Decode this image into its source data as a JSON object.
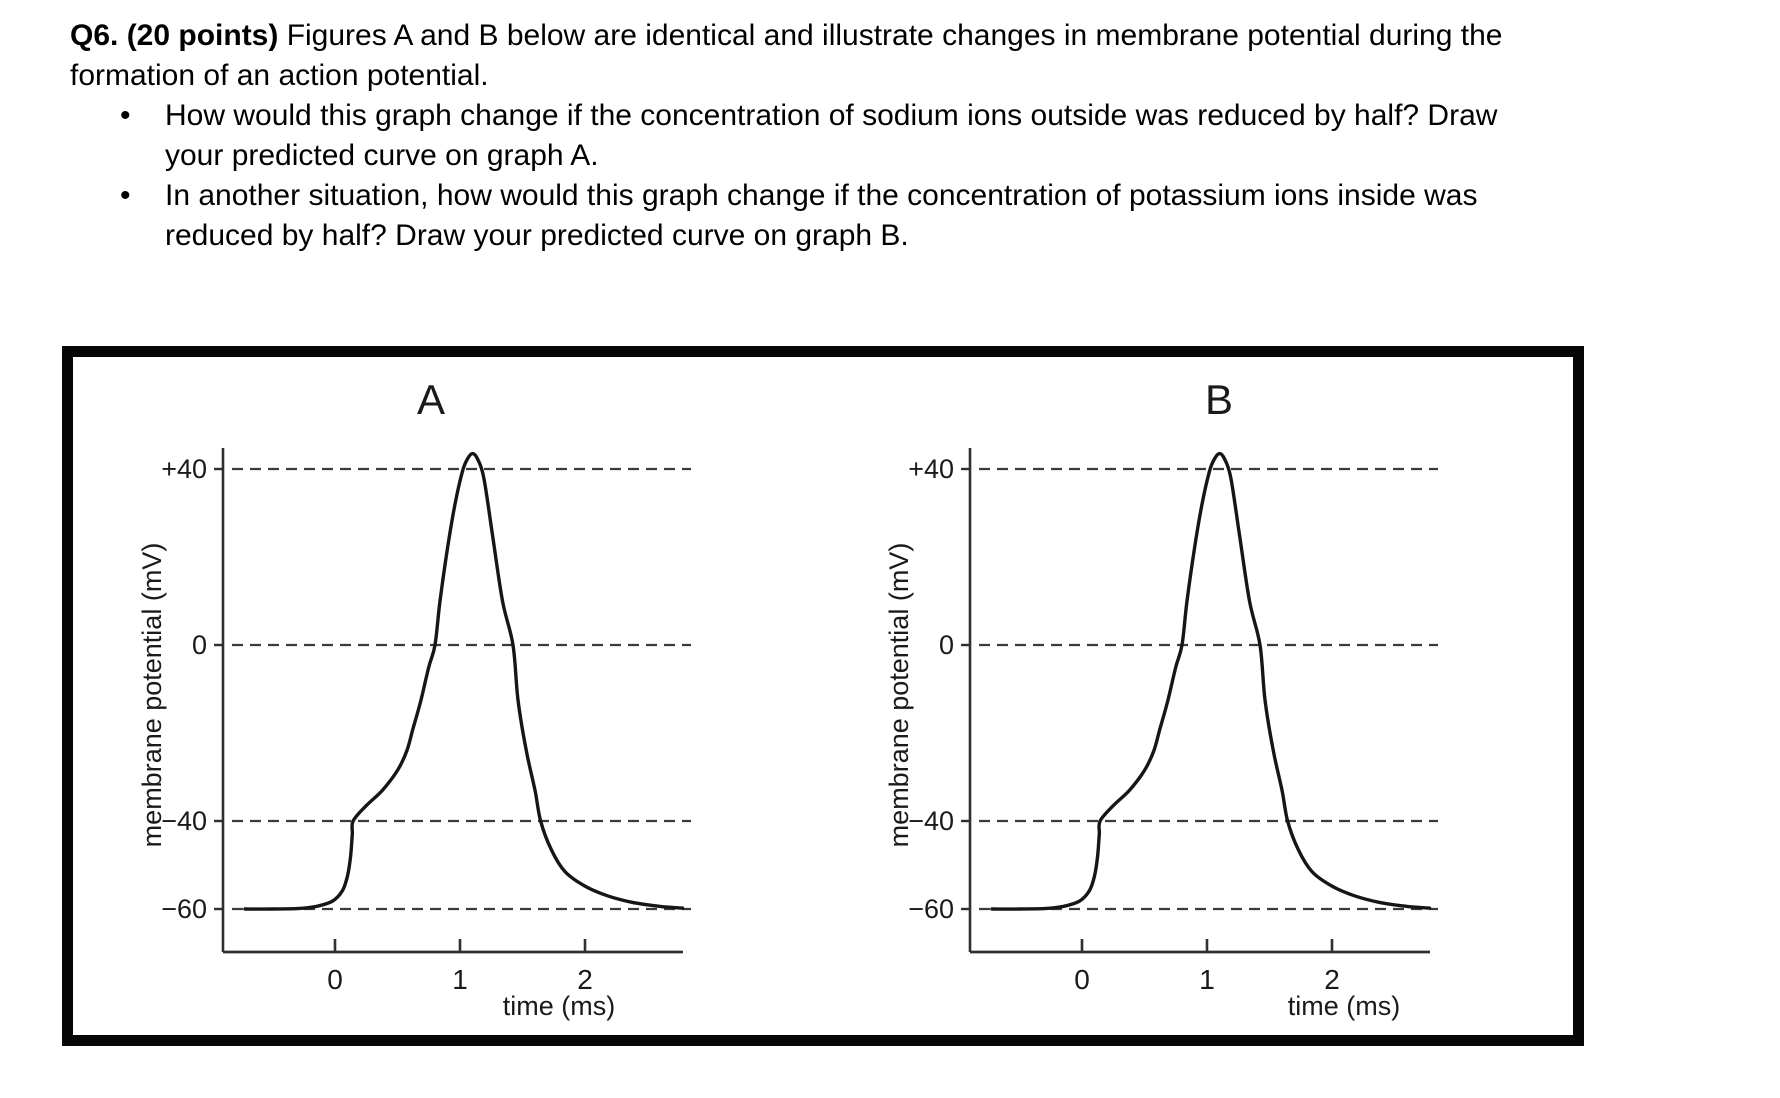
{
  "question": {
    "number_points": "Q6. (20 points)",
    "intro_rest": " Figures A and B below are identical and illustrate changes in membrane potential during the",
    "intro_line2": "formation of an action potential.",
    "bullet_glyph": "•",
    "bullets": [
      {
        "line1": "How would this graph change if the concentration of sodium ions outside was reduced by half? Draw",
        "line2": "your predicted curve on graph A."
      },
      {
        "line1": "In another situation, how would this graph change if the concentration of potassium ions inside was",
        "line2": "reduced by half? Draw your predicted curve on graph B."
      }
    ]
  },
  "figure": {
    "border_color": "#060606",
    "curve_color": "#161616",
    "dash_color": "#3b3b3b",
    "axis_color": "#2f2f2f"
  },
  "chart_data": [
    {
      "type": "line",
      "title": "A",
      "xlabel": "time (ms)",
      "ylabel": "membrane potential (mV)",
      "x_ticks": [
        0,
        1,
        2
      ],
      "y_tick_values": [
        40,
        0,
        -40,
        -60
      ],
      "y_tick_labels": [
        "+40",
        "0",
        "−40",
        "−60"
      ],
      "xlim": [
        -0.9,
        2.78
      ],
      "ylim": [
        -75,
        52
      ],
      "grid": "horizontal dashed lines at +40, 0, -40, -60",
      "legend": "none",
      "resting_potential_mV": -60,
      "threshold_mV": -40,
      "peak_mV": 43.5,
      "peak_time_ms": 1.1,
      "series": [
        {
          "name": "membrane potential",
          "points": [
            [
              -0.72,
              -60
            ],
            [
              -0.5,
              -60
            ],
            [
              -0.3,
              -59.9
            ],
            [
              -0.15,
              -59.4
            ],
            [
              -0.02,
              -58.2
            ],
            [
              0.06,
              -55.8
            ],
            [
              0.1,
              -52.5
            ],
            [
              0.125,
              -48
            ],
            [
              0.138,
              -43
            ],
            [
              0.145,
              -40
            ],
            [
              0.25,
              -36.5
            ],
            [
              0.38,
              -33
            ],
            [
              0.5,
              -28.5
            ],
            [
              0.575,
              -24
            ],
            [
              0.624,
              -19
            ],
            [
              0.688,
              -12.5
            ],
            [
              0.75,
              -5
            ],
            [
              0.8,
              0
            ],
            [
              0.84,
              10
            ],
            [
              0.9,
              22
            ],
            [
              0.96,
              32
            ],
            [
              1.02,
              39.5
            ],
            [
              1.06,
              42.3
            ],
            [
              1.1,
              43.5
            ],
            [
              1.14,
              42.3
            ],
            [
              1.19,
              38
            ],
            [
              1.26,
              25
            ],
            [
              1.34,
              10
            ],
            [
              1.424,
              0
            ],
            [
              1.464,
              -12.5
            ],
            [
              1.53,
              -24
            ],
            [
              1.6,
              -33
            ],
            [
              1.645,
              -40
            ],
            [
              1.73,
              -46.5
            ],
            [
              1.84,
              -51.5
            ],
            [
              2.0,
              -54.8
            ],
            [
              2.18,
              -57
            ],
            [
              2.38,
              -58.5
            ],
            [
              2.6,
              -59.4
            ],
            [
              2.78,
              -59.8
            ]
          ]
        }
      ]
    },
    {
      "type": "line",
      "title": "B",
      "xlabel": "time (ms)",
      "ylabel": "membrane potential (mV)",
      "x_ticks": [
        0,
        1,
        2
      ],
      "y_tick_values": [
        40,
        0,
        -40,
        -60
      ],
      "y_tick_labels": [
        "+40",
        "0",
        "−40",
        "−60"
      ],
      "xlim": [
        -0.9,
        2.78
      ],
      "ylim": [
        -75,
        52
      ],
      "grid": "horizontal dashed lines at +40, 0, -40, -60",
      "legend": "none",
      "resting_potential_mV": -60,
      "threshold_mV": -40,
      "peak_mV": 43.5,
      "peak_time_ms": 1.1,
      "series": [
        {
          "name": "membrane potential",
          "points": [
            [
              -0.72,
              -60
            ],
            [
              -0.5,
              -60
            ],
            [
              -0.3,
              -59.9
            ],
            [
              -0.15,
              -59.4
            ],
            [
              -0.02,
              -58.2
            ],
            [
              0.06,
              -55.8
            ],
            [
              0.1,
              -52.5
            ],
            [
              0.125,
              -48
            ],
            [
              0.138,
              -43
            ],
            [
              0.145,
              -40
            ],
            [
              0.25,
              -36.5
            ],
            [
              0.38,
              -33
            ],
            [
              0.5,
              -28.5
            ],
            [
              0.575,
              -24
            ],
            [
              0.624,
              -19
            ],
            [
              0.688,
              -12.5
            ],
            [
              0.75,
              -5
            ],
            [
              0.8,
              0
            ],
            [
              0.84,
              10
            ],
            [
              0.9,
              22
            ],
            [
              0.96,
              32
            ],
            [
              1.02,
              39.5
            ],
            [
              1.06,
              42.3
            ],
            [
              1.1,
              43.5
            ],
            [
              1.14,
              42.3
            ],
            [
              1.19,
              38
            ],
            [
              1.26,
              25
            ],
            [
              1.34,
              10
            ],
            [
              1.424,
              0
            ],
            [
              1.464,
              -12.5
            ],
            [
              1.53,
              -24
            ],
            [
              1.6,
              -33
            ],
            [
              1.645,
              -40
            ],
            [
              1.73,
              -46.5
            ],
            [
              1.84,
              -51.5
            ],
            [
              2.0,
              -54.8
            ],
            [
              2.18,
              -57
            ],
            [
              2.38,
              -58.5
            ],
            [
              2.6,
              -59.4
            ],
            [
              2.78,
              -59.8
            ]
          ]
        }
      ]
    }
  ]
}
